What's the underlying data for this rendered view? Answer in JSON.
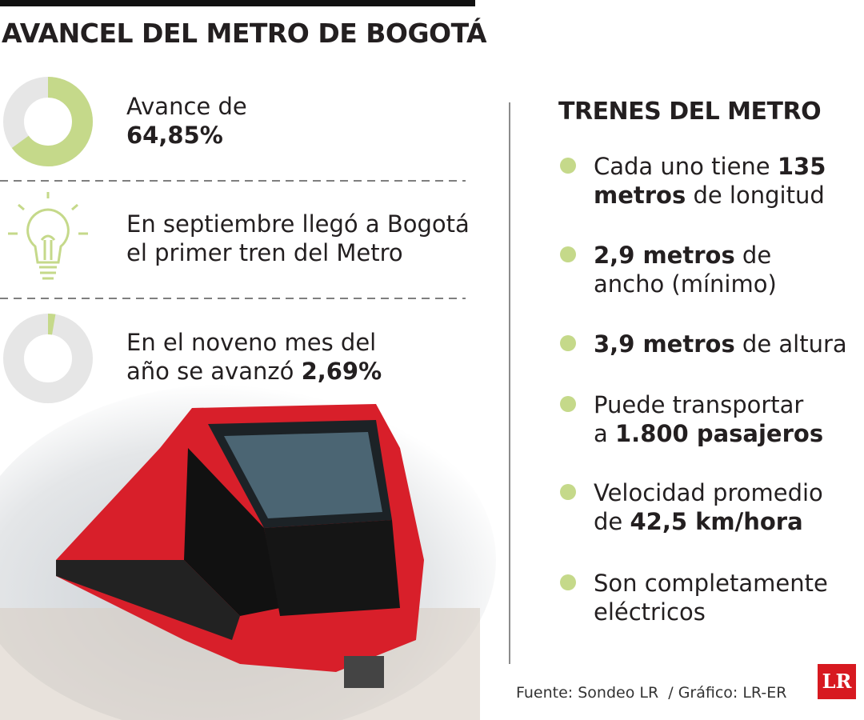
{
  "title": "AVANCEL DEL METRO DE BOGOTÁ",
  "stats": [
    {
      "lines": [
        "Avance de"
      ],
      "value": 64.85,
      "label": "64,85%",
      "label_newline": true
    },
    {
      "lines": [
        "En septiembre llegó a Bogotá",
        "el primer tren del Metro"
      ]
    },
    {
      "lines": [
        "En el noveno mes del",
        "año se avanzó"
      ],
      "value": 2.69,
      "label": "2,69%",
      "label_newline": false
    }
  ],
  "trains": {
    "title": "TRENES DEL METRO",
    "items": [
      [
        [
          {
            "text": "Cada uno tiene ",
            "bold": false
          },
          {
            "text": "135",
            "bold": true
          }
        ],
        [
          {
            "text": "metros",
            "bold": true
          },
          {
            "text": " de longitud",
            "bold": false
          }
        ]
      ],
      [
        [
          {
            "text": "2,9 metros",
            "bold": true
          },
          {
            "text": " de",
            "bold": false
          }
        ],
        [
          {
            "text": "ancho (mínimo)",
            "bold": false
          }
        ]
      ],
      [
        [
          {
            "text": "3,9 metros",
            "bold": true
          },
          {
            "text": " de altura",
            "bold": false
          }
        ]
      ],
      [
        [
          {
            "text": "Puede transportar",
            "bold": false
          }
        ],
        [
          {
            "text": "a ",
            "bold": false
          },
          {
            "text": "1.800 pasajeros",
            "bold": true
          }
        ]
      ],
      [
        [
          {
            "text": "Velocidad promedio",
            "bold": false
          }
        ],
        [
          {
            "text": "de ",
            "bold": false
          },
          {
            "text": "42,5 km/hora",
            "bold": true
          }
        ]
      ],
      [
        [
          {
            "text": "Son completamente",
            "bold": false
          }
        ],
        [
          {
            "text": "eléctricos",
            "bold": false
          }
        ]
      ]
    ]
  },
  "source": "Fuente: Sondeo LR  / Gráfico: LR-ER",
  "logo": "LR",
  "ring_color": "#c5d98a",
  "track_color": "#e6e6e6"
}
